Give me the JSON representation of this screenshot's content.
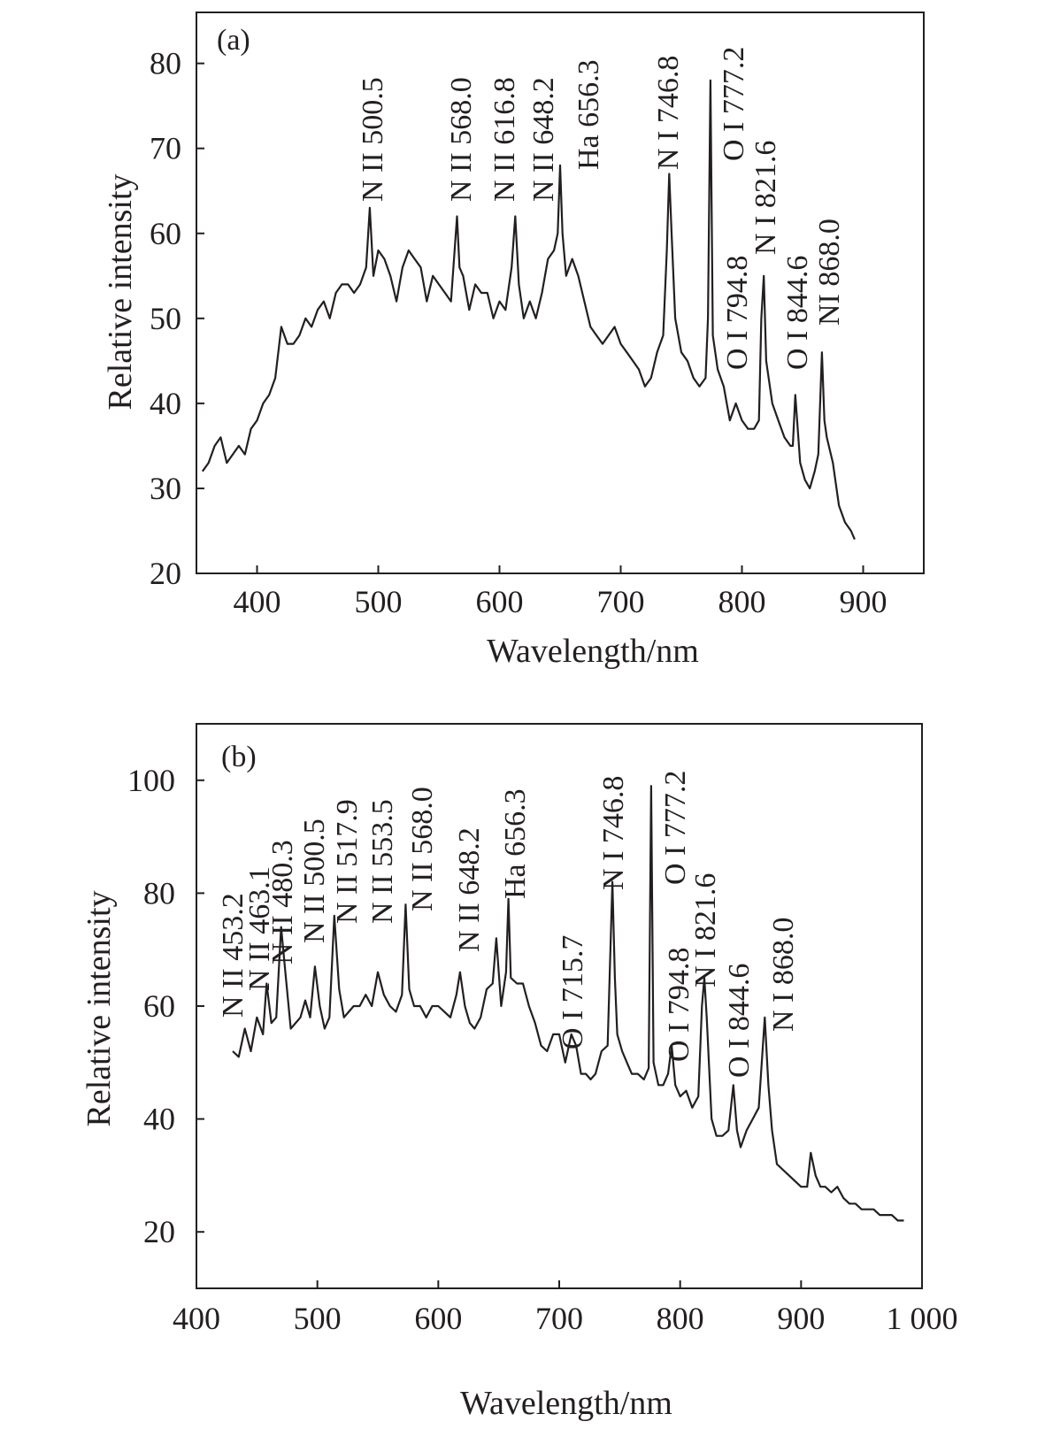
{
  "chart_data": [
    {
      "type": "line",
      "panel_label": "(a)",
      "xlabel": "Wavelength/nm",
      "ylabel": "Relative intensity",
      "xlim": [
        350,
        950
      ],
      "ylim": [
        20,
        86
      ],
      "xticks": [
        400,
        500,
        600,
        700,
        800,
        900
      ],
      "xtick_labels": [
        "400",
        "500",
        "600",
        "700",
        "800",
        "900"
      ],
      "yticks": [
        20,
        30,
        40,
        50,
        60,
        70,
        80
      ],
      "ytick_labels": [
        "20",
        "30",
        "40",
        "50",
        "60",
        "70",
        "80"
      ],
      "grid": false,
      "series": [
        {
          "x": [
            355,
            360,
            365,
            370,
            375,
            380,
            385,
            390,
            395,
            400,
            405,
            410,
            415,
            420,
            425,
            430,
            435,
            440,
            445,
            450,
            455,
            460,
            465,
            470,
            475,
            480,
            485,
            490,
            493,
            496,
            500,
            505,
            510,
            515,
            520,
            525,
            530,
            535,
            540,
            545,
            550,
            555,
            560,
            565,
            567,
            570,
            575,
            580,
            585,
            590,
            595,
            600,
            605,
            610,
            613,
            616,
            620,
            625,
            630,
            635,
            640,
            645,
            648,
            650,
            652,
            655,
            660,
            665,
            670,
            675,
            680,
            685,
            690,
            695,
            700,
            705,
            710,
            715,
            720,
            725,
            730,
            735,
            738,
            740,
            742,
            745,
            750,
            755,
            760,
            765,
            770,
            772,
            774,
            776,
            780,
            785,
            790,
            795,
            800,
            805,
            810,
            814,
            816,
            818,
            820,
            825,
            830,
            835,
            840,
            842,
            844,
            848,
            852,
            856,
            860,
            863,
            866,
            868,
            870,
            875,
            880,
            885,
            890,
            893
          ],
          "y": [
            32,
            33,
            35,
            36,
            33,
            34,
            35,
            34,
            37,
            38,
            40,
            41,
            43,
            49,
            47,
            47,
            48,
            50,
            49,
            51,
            52,
            50,
            53,
            54,
            54,
            53,
            54,
            56,
            63,
            55,
            58,
            57,
            55,
            52,
            56,
            58,
            57,
            56,
            52,
            55,
            54,
            53,
            52,
            62,
            56,
            55,
            51,
            54,
            53,
            53,
            50,
            52,
            51,
            56,
            62,
            54,
            50,
            52,
            50,
            53,
            57,
            58,
            60,
            68,
            60,
            55,
            57,
            55,
            52,
            49,
            48,
            47,
            48,
            49,
            47,
            46,
            45,
            44,
            42,
            43,
            46,
            48,
            58,
            67,
            60,
            50,
            46,
            45,
            43,
            42,
            43,
            50,
            78,
            48,
            44,
            42,
            38,
            40,
            38,
            37,
            37,
            38,
            50,
            55,
            45,
            40,
            38,
            36,
            35,
            35,
            41,
            33,
            31,
            30,
            32,
            34,
            46,
            38,
            36,
            33,
            28,
            26,
            25,
            24
          ]
        }
      ],
      "annotations": [
        "N II 500.5",
        "N II 568.0",
        "N II 616.8",
        "N II 648.2",
        "Ha 656.3",
        "N I 746.8",
        "O I 777.2",
        "O I 794.8",
        "N I 821.6",
        "O I 844.6",
        "NI 868.0"
      ]
    },
    {
      "type": "line",
      "panel_label": "(b)",
      "xlabel": "Wavelength/nm",
      "ylabel": "Relative intensity",
      "xlim": [
        400,
        1000
      ],
      "ylim": [
        10,
        110
      ],
      "xticks": [
        400,
        500,
        600,
        700,
        800,
        900,
        1000
      ],
      "xtick_labels": [
        "400",
        "500",
        "600",
        "700",
        "800",
        "900",
        "1 000"
      ],
      "yticks": [
        20,
        40,
        60,
        80,
        100
      ],
      "ytick_labels": [
        "20",
        "40",
        "60",
        "80",
        "100"
      ],
      "grid": false,
      "series": [
        {
          "x": [
            430,
            435,
            440,
            445,
            450,
            455,
            458,
            462,
            466,
            470,
            474,
            478,
            482,
            486,
            490,
            494,
            498,
            502,
            506,
            510,
            514,
            518,
            522,
            526,
            530,
            535,
            540,
            545,
            550,
            555,
            560,
            565,
            570,
            573,
            576,
            580,
            585,
            590,
            595,
            600,
            605,
            610,
            615,
            618,
            622,
            626,
            630,
            635,
            640,
            645,
            648,
            652,
            656,
            658,
            660,
            665,
            670,
            675,
            680,
            685,
            690,
            695,
            700,
            705,
            710,
            714,
            718,
            722,
            726,
            730,
            735,
            740,
            744,
            746,
            748,
            752,
            756,
            760,
            765,
            770,
            774,
            776,
            778,
            782,
            786,
            790,
            793,
            796,
            800,
            805,
            810,
            815,
            818,
            820,
            822,
            826,
            830,
            835,
            840,
            844,
            847,
            850,
            855,
            860,
            865,
            870,
            873,
            876,
            880,
            885,
            890,
            895,
            900,
            905,
            908,
            912,
            916,
            920,
            925,
            930,
            935,
            940,
            945,
            950,
            955,
            960,
            965,
            970,
            975,
            980,
            985
          ],
          "y": [
            52,
            51,
            56,
            52,
            58,
            55,
            64,
            57,
            58,
            74,
            65,
            56,
            57,
            58,
            61,
            58,
            67,
            60,
            56,
            58,
            76,
            63,
            58,
            59,
            60,
            60,
            62,
            60,
            66,
            62,
            60,
            59,
            62,
            78,
            63,
            60,
            60,
            58,
            60,
            60,
            59,
            58,
            62,
            66,
            60,
            57,
            56,
            58,
            63,
            64,
            72,
            60,
            66,
            79,
            65,
            64,
            64,
            60,
            57,
            53,
            52,
            55,
            55,
            50,
            55,
            53,
            48,
            48,
            47,
            48,
            52,
            53,
            82,
            65,
            55,
            52,
            50,
            48,
            48,
            47,
            49,
            99,
            50,
            46,
            46,
            48,
            53,
            46,
            44,
            45,
            42,
            44,
            60,
            65,
            58,
            40,
            37,
            37,
            38,
            46,
            38,
            35,
            38,
            40,
            42,
            58,
            46,
            38,
            32,
            31,
            30,
            29,
            28,
            28,
            34,
            30,
            28,
            28,
            27,
            28,
            26,
            25,
            25,
            24,
            24,
            24,
            23,
            23,
            23,
            22,
            22
          ]
        }
      ],
      "annotations": [
        "N II 453.2",
        "N II 463.1",
        "N II 480.3",
        "N II 500.5",
        "N II 517.9",
        "N II 553.5",
        "N II 568.0",
        "N II 648.2",
        "Ha 656.3",
        "O I 715.7",
        "N I 746.8",
        "O I 777.2",
        "O I 794.8",
        "N I 821.6",
        "O I  844.6",
        "N I 868.0"
      ]
    }
  ]
}
